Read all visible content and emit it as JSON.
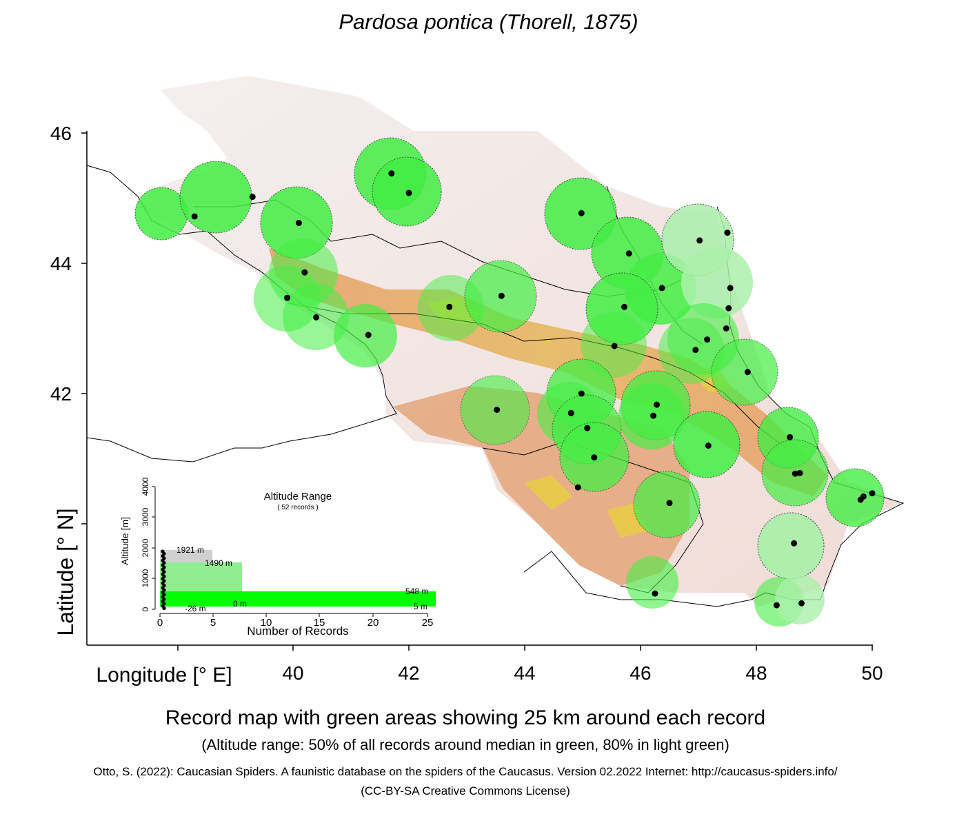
{
  "title": "Pardosa pontica (Thorell, 1875)",
  "axes": {
    "x_label": "Longitude [° E]",
    "y_label": "Latitude [° N]",
    "x_ticks": [
      "40",
      "42",
      "44",
      "46",
      "48",
      "50"
    ],
    "y_ticks": [
      "46",
      "44",
      "42"
    ]
  },
  "legend_inset": {
    "title": "Altitude Range",
    "subtitle": "( 52 records )",
    "y_axis_label": "Altitude [m]",
    "x_axis_label": "Number of Records",
    "y_ticks": [
      "0",
      "1000",
      "2000",
      "3000",
      "4000"
    ],
    "x_ticks": [
      "0",
      "5",
      "10",
      "15",
      "20",
      "25"
    ],
    "labels": {
      "max": "1921  m",
      "p80_high": "1490  m",
      "p50_high": "548  m",
      "median": "0  m",
      "p50_low": "5  m",
      "min": "-26  m"
    }
  },
  "caption": {
    "main": "Record map with green areas showing 25 km around each record",
    "sub": "(Altitude range: 50% of all records around median in green, 80% in light green)",
    "credit": "Otto, S. (2022): Caucasian Spiders. A faunistic database on the spiders of the Caucasus. Version 02.2022 Internet: http://caucasus-spiders.info/",
    "license": "(CC-BY-SA Creative Commons License)"
  },
  "colors": {
    "record_area": "#44ee44",
    "record_area_light": "#aaf0aa",
    "terrain_low": "#f2eeee",
    "terrain_mid": "#e8a878",
    "terrain_high": "#e6c84a",
    "record_point": "#000000"
  },
  "chart_data": {
    "type": "scatter",
    "title": "Pardosa pontica (Thorell, 1875)",
    "xlabel": "Longitude [° E]",
    "ylabel": "Latitude [° N]",
    "xlim": [
      36.4,
      50.6
    ],
    "ylim": [
      38.1,
      46.7
    ],
    "records": [
      {
        "lon": 38.3,
        "lat": 44.72
      },
      {
        "lon": 39.3,
        "lat": 45.02
      },
      {
        "lon": 40.1,
        "lat": 44.62
      },
      {
        "lon": 40.2,
        "lat": 43.86
      },
      {
        "lon": 39.9,
        "lat": 43.47
      },
      {
        "lon": 40.4,
        "lat": 43.17
      },
      {
        "lon": 41.3,
        "lat": 42.9
      },
      {
        "lon": 41.7,
        "lat": 45.38
      },
      {
        "lon": 42.0,
        "lat": 45.08
      },
      {
        "lon": 42.7,
        "lat": 43.33
      },
      {
        "lon": 43.6,
        "lat": 43.5
      },
      {
        "lon": 44.98,
        "lat": 44.77
      },
      {
        "lon": 45.8,
        "lat": 44.15
      },
      {
        "lon": 46.37,
        "lat": 43.62
      },
      {
        "lon": 45.72,
        "lat": 43.33
      },
      {
        "lon": 45.55,
        "lat": 42.73
      },
      {
        "lon": 47.02,
        "lat": 44.35
      },
      {
        "lon": 47.5,
        "lat": 44.47
      },
      {
        "lon": 47.55,
        "lat": 43.62
      },
      {
        "lon": 47.52,
        "lat": 43.31
      },
      {
        "lon": 47.48,
        "lat": 43.0
      },
      {
        "lon": 47.15,
        "lat": 42.83
      },
      {
        "lon": 46.95,
        "lat": 42.67
      },
      {
        "lon": 47.85,
        "lat": 42.33
      },
      {
        "lon": 43.52,
        "lat": 41.75
      },
      {
        "lon": 44.98,
        "lat": 42.0
      },
      {
        "lon": 44.8,
        "lat": 41.7
      },
      {
        "lon": 45.08,
        "lat": 41.47
      },
      {
        "lon": 45.2,
        "lat": 41.02
      },
      {
        "lon": 44.92,
        "lat": 40.56
      },
      {
        "lon": 46.28,
        "lat": 41.83
      },
      {
        "lon": 46.22,
        "lat": 41.66
      },
      {
        "lon": 47.17,
        "lat": 41.2
      },
      {
        "lon": 48.58,
        "lat": 41.33
      },
      {
        "lon": 48.67,
        "lat": 40.77
      },
      {
        "lon": 48.75,
        "lat": 40.78
      },
      {
        "lon": 46.5,
        "lat": 40.32
      },
      {
        "lon": 48.65,
        "lat": 39.7
      },
      {
        "lon": 46.25,
        "lat": 38.93
      },
      {
        "lon": 48.35,
        "lat": 38.75
      },
      {
        "lon": 48.78,
        "lat": 38.78
      },
      {
        "lon": 49.8,
        "lat": 40.37
      },
      {
        "lon": 49.85,
        "lat": 40.42
      },
      {
        "lon": 50.0,
        "lat": 40.47
      }
    ]
  }
}
